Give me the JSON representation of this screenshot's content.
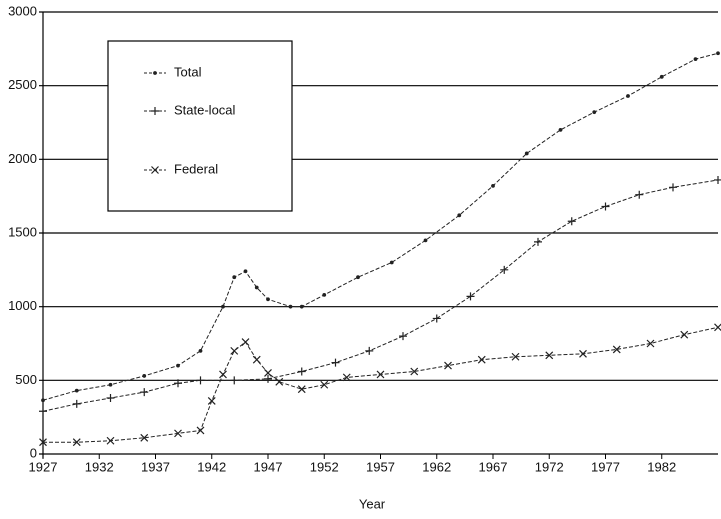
{
  "chart_data": {
    "type": "line",
    "xlabel": "Year",
    "xlim": [
      1927,
      1987
    ],
    "xticks": [
      1927,
      1932,
      1937,
      1942,
      1947,
      1952,
      1957,
      1962,
      1967,
      1972,
      1977,
      1982
    ],
    "ylim": [
      0,
      3000
    ],
    "yticks": [
      0,
      500,
      1000,
      1500,
      2000,
      2500,
      3000
    ],
    "grid": true,
    "series": [
      {
        "name": "Total",
        "color": "#222",
        "marker": "dot",
        "x": [
          1927,
          1930,
          1933,
          1936,
          1939,
          1941,
          1943,
          1944,
          1945,
          1946,
          1947,
          1949,
          1950,
          1952,
          1955,
          1958,
          1961,
          1964,
          1967,
          1970,
          1973,
          1976,
          1979,
          1982,
          1985,
          1987
        ],
        "values": [
          365,
          430,
          470,
          530,
          600,
          700,
          1000,
          1200,
          1240,
          1130,
          1050,
          1000,
          1000,
          1080,
          1200,
          1300,
          1450,
          1620,
          1820,
          2040,
          2200,
          2320,
          2430,
          2560,
          2680,
          2720
        ]
      },
      {
        "name": "State-local",
        "color": "#222",
        "marker": "plus",
        "x": [
          1927,
          1930,
          1933,
          1936,
          1939,
          1941,
          1944,
          1947,
          1950,
          1953,
          1956,
          1959,
          1962,
          1965,
          1968,
          1971,
          1974,
          1977,
          1980,
          1983,
          1987
        ],
        "values": [
          290,
          340,
          380,
          420,
          480,
          500,
          500,
          510,
          560,
          620,
          700,
          800,
          920,
          1070,
          1250,
          1440,
          1580,
          1680,
          1760,
          1810,
          1860
        ]
      },
      {
        "name": "Federal",
        "color": "#222",
        "marker": "cross",
        "x": [
          1927,
          1930,
          1933,
          1936,
          1939,
          1941,
          1942,
          1943,
          1944,
          1945,
          1946,
          1947,
          1948,
          1950,
          1952,
          1954,
          1957,
          1960,
          1963,
          1966,
          1969,
          1972,
          1975,
          1978,
          1981,
          1984,
          1987
        ],
        "values": [
          80,
          80,
          90,
          110,
          140,
          160,
          360,
          540,
          700,
          760,
          640,
          550,
          490,
          440,
          470,
          520,
          540,
          560,
          600,
          640,
          660,
          670,
          680,
          710,
          750,
          810,
          860
        ]
      }
    ]
  }
}
